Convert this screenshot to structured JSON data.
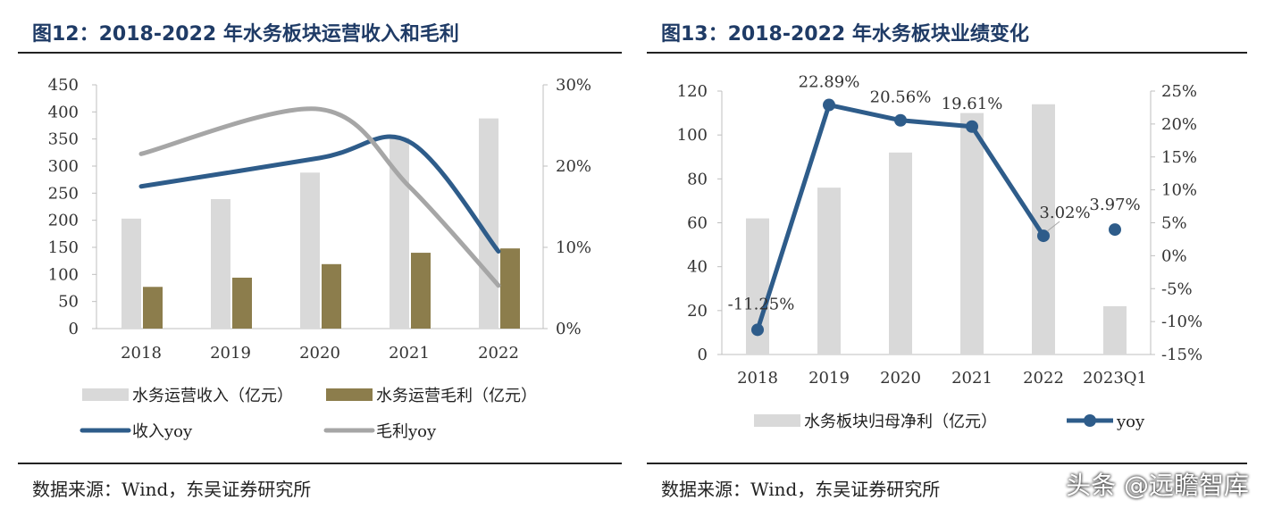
{
  "left": {
    "title": "图12：2018-2022 年水务板块运营收入和毛利",
    "source": "数据来源：Wind，东吴证券研究所",
    "chart_data": {
      "type": "bar",
      "categories": [
        "2018",
        "2019",
        "2020",
        "2021",
        "2022"
      ],
      "series": [
        {
          "name": "水务运营收入（亿元）",
          "type": "bar",
          "axis": "left",
          "color": "#d9d9d9",
          "values": [
            203,
            239,
            288,
            352,
            388
          ]
        },
        {
          "name": "水务运营毛利（亿元）",
          "type": "bar",
          "axis": "left",
          "color": "#8c7d4c",
          "values": [
            77,
            94,
            119,
            140,
            148
          ]
        },
        {
          "name": "收入yoy",
          "type": "line",
          "axis": "right",
          "color": "#2e5c8a",
          "smooth": true,
          "values": [
            17.5,
            null,
            21.0,
            23.0,
            9.5
          ]
        },
        {
          "name": "毛利yoy",
          "type": "line",
          "axis": "right",
          "color": "#a6a6a6",
          "smooth": true,
          "values": [
            21.5,
            null,
            27.0,
            17.5,
            5.3
          ]
        }
      ],
      "ylim_left": [
        0,
        450
      ],
      "yticks_left": [
        "0",
        "50",
        "100",
        "150",
        "200",
        "250",
        "300",
        "350",
        "400",
        "450"
      ],
      "ylim_right": [
        0,
        30
      ],
      "yticks_right": [
        "0%",
        "10%",
        "20%",
        "30%"
      ],
      "legend": [
        "水务运营收入（亿元）",
        "水务运营毛利（亿元）",
        "收入yoy",
        "毛利yoy"
      ],
      "legend_position": "bottom"
    }
  },
  "right": {
    "title": "图13：2018-2022 年水务板块业绩变化",
    "source": "数据来源：Wind，东吴证券研究所",
    "chart_data": {
      "type": "bar",
      "categories": [
        "2018",
        "2019",
        "2020",
        "2021",
        "2022",
        "2023Q1"
      ],
      "series": [
        {
          "name": "水务板块归母净利（亿元）",
          "type": "bar",
          "axis": "left",
          "color": "#d9d9d9",
          "values": [
            62,
            76,
            92,
            110,
            114,
            22
          ]
        },
        {
          "name": "yoy",
          "type": "line",
          "axis": "right",
          "color": "#2e5c8a",
          "values": [
            -11.25,
            22.89,
            20.56,
            19.61,
            3.02,
            3.97
          ],
          "labels": [
            "-11.25%",
            "22.89%",
            "20.56%",
            "19.61%",
            "3.02%",
            "3.97%"
          ]
        }
      ],
      "ylim_left": [
        0,
        120
      ],
      "yticks_left": [
        "0",
        "20",
        "40",
        "60",
        "80",
        "100",
        "120"
      ],
      "ylim_right": [
        -15,
        25
      ],
      "yticks_right": [
        "-15%",
        "-10%",
        "-5%",
        "0%",
        "5%",
        "10%",
        "15%",
        "20%",
        "25%"
      ],
      "legend": [
        "水务板块归母净利（亿元）",
        "yoy"
      ],
      "legend_position": "bottom"
    }
  },
  "watermark": "头条 @远瞻智库"
}
